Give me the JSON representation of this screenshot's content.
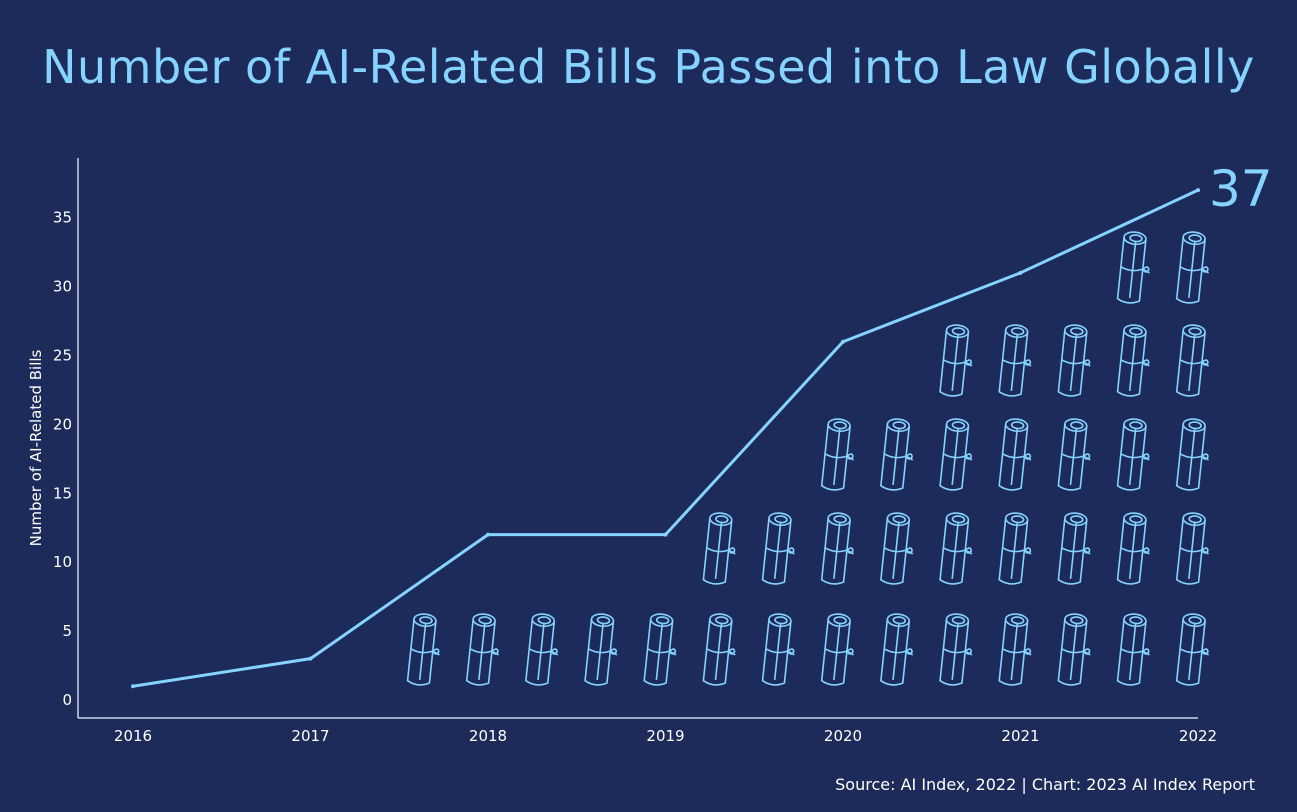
{
  "title": "Number of AI-Related Bills Passed into Law Globally",
  "source": "Source: AI Index, 2022 | Chart: 2023 AI Index Report",
  "colors": {
    "background": "#1c2b5a",
    "accent": "#86d3ff",
    "axis": "#c9d3e8",
    "text": "#ffffff"
  },
  "chart_data": {
    "type": "line",
    "title": "Number of AI-Related Bills Passed into Law Globally",
    "xlabel": "",
    "ylabel": "Number of AI-Related Bills",
    "categories": [
      "2016",
      "2017",
      "2018",
      "2019",
      "2020",
      "2021",
      "2022"
    ],
    "values": [
      1,
      3,
      12,
      12,
      26,
      31,
      37
    ],
    "yticks": [
      "0",
      "5",
      "10",
      "15",
      "20",
      "25",
      "30",
      "35"
    ],
    "ylim": [
      0,
      40
    ],
    "grid": false,
    "final_value_label": "37",
    "decoration_icon": "scroll-icon"
  }
}
